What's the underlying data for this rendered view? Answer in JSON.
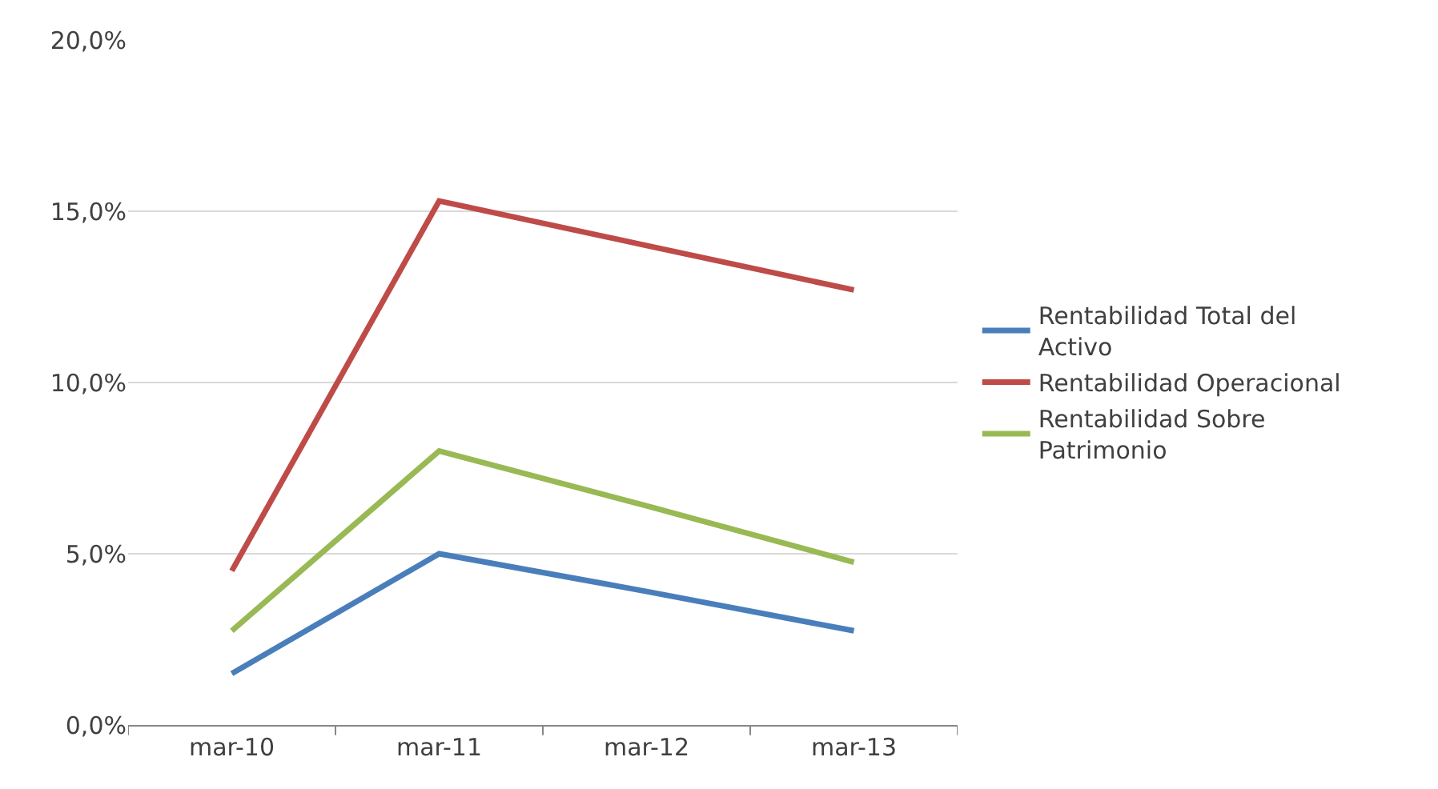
{
  "chart_data": {
    "type": "line",
    "categories": [
      "mar-10",
      "mar-11",
      "mar-12",
      "mar-13"
    ],
    "series": [
      {
        "name": "Rentabilidad Total del Activo",
        "color": "#4a7ebb",
        "values": [
          1.5,
          5.0,
          3.9,
          2.75
        ]
      },
      {
        "name": "Rentabilidad Operacional",
        "color": "#be4b48",
        "values": [
          4.5,
          15.3,
          14.0,
          12.7
        ]
      },
      {
        "name": "Rentabilidad Sobre Patrimonio",
        "color": "#98b954",
        "values": [
          2.75,
          8.0,
          6.4,
          4.75
        ]
      }
    ],
    "ylim": [
      0,
      20
    ],
    "yticks": [
      {
        "value": 0,
        "label": "0,0%"
      },
      {
        "value": 5,
        "label": "5,0%"
      },
      {
        "value": 10,
        "label": "10,0%"
      },
      {
        "value": 15,
        "label": "15,0%"
      },
      {
        "value": 20,
        "label": "20,0%"
      }
    ],
    "grid": "y",
    "legend": "right",
    "marker": "none",
    "line_style": "solid"
  }
}
